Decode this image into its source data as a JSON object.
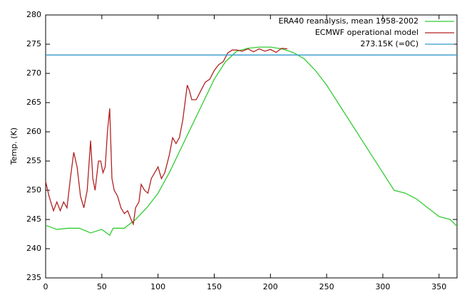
{
  "chart_data": {
    "type": "line",
    "ylabel": "Temp. (K)",
    "xlim": [
      0,
      366
    ],
    "xticks": [
      0,
      50,
      100,
      150,
      200,
      250,
      300,
      350
    ],
    "ylim": [
      235,
      280
    ],
    "yticks": [
      235,
      240,
      245,
      250,
      255,
      260,
      265,
      270,
      275,
      280
    ],
    "grid": false,
    "legend": "upper right",
    "series": [
      {
        "name": "ERA40 reanalysis, mean 1958-2002",
        "color": "#33cc33",
        "x": [
          0,
          10,
          20,
          30,
          40,
          50,
          57,
          60,
          70,
          80,
          90,
          100,
          110,
          120,
          130,
          140,
          150,
          160,
          170,
          180,
          190,
          200,
          210,
          220,
          230,
          240,
          250,
          260,
          270,
          280,
          290,
          300,
          310,
          320,
          330,
          340,
          350,
          360,
          366
        ],
        "values": [
          244,
          243.3,
          243.5,
          243.5,
          242.7,
          243.3,
          242.3,
          243.5,
          243.5,
          245,
          247,
          249.5,
          253,
          257,
          261,
          265,
          269,
          272,
          273.8,
          274.3,
          274.5,
          274.5,
          274.2,
          273.6,
          272.5,
          270.5,
          268,
          265,
          262,
          259,
          256,
          253,
          250,
          249.5,
          248.5,
          247,
          245.5,
          245,
          243.8
        ]
      },
      {
        "name": "ECMWF operational model",
        "color": "#b22222",
        "x": [
          0,
          3,
          7,
          10,
          13,
          16,
          19,
          22,
          25,
          28,
          31,
          34,
          37,
          40,
          42,
          44,
          47,
          49,
          51,
          53,
          55,
          57,
          59,
          61,
          64,
          67,
          70,
          73,
          76,
          78,
          80,
          83,
          85,
          88,
          91,
          94,
          97,
          100,
          103,
          106,
          110,
          113,
          116,
          119,
          122,
          124,
          126,
          128,
          130,
          134,
          138,
          142,
          146,
          150,
          154,
          158,
          162,
          166,
          170,
          175,
          180,
          185,
          190,
          195,
          200,
          205,
          210,
          215
        ],
        "values": [
          251.5,
          249,
          246.5,
          248,
          246.5,
          248,
          247,
          252,
          256.5,
          254,
          249,
          247,
          250,
          258.5,
          252,
          250,
          255,
          255,
          253,
          254,
          260,
          264,
          252,
          250,
          249,
          247,
          246,
          246.5,
          245,
          244.2,
          247,
          248,
          251,
          250,
          249.5,
          252,
          253,
          254,
          252,
          253,
          256,
          259,
          258,
          259,
          262,
          265,
          268,
          267,
          265.5,
          265.5,
          267,
          268.5,
          269,
          270.5,
          271.5,
          272,
          273.5,
          274,
          274,
          273.8,
          274.2,
          273.7,
          274.2,
          273.8,
          274.1,
          273.6,
          274.3,
          274.2
        ]
      },
      {
        "name": "273.15K (=0C)",
        "color": "#3399cc",
        "x": [
          0,
          366
        ],
        "values": [
          273.15,
          273.15
        ]
      }
    ]
  }
}
